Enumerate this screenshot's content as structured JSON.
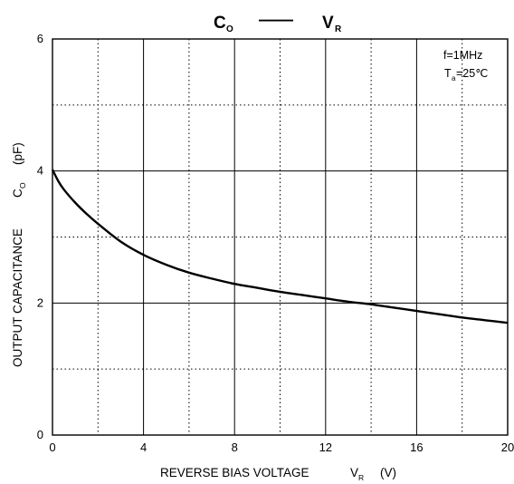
{
  "chart_data": {
    "type": "line",
    "title": {
      "main": "C",
      "main_sub": "O",
      "dash": "——",
      "right": "V",
      "right_sub": "R"
    },
    "xlabel": {
      "text": "REVERSE BIAS VOLTAGE",
      "symbol": "V",
      "symbol_sub": "R",
      "unit": "(V)"
    },
    "ylabel": {
      "text": "OUTPUT CAPACITANCE",
      "symbol": "C",
      "symbol_sub": "O",
      "unit": "(pF)"
    },
    "xlim": [
      0,
      20
    ],
    "ylim": [
      0,
      6
    ],
    "x_ticks": [
      "0",
      "4",
      "8",
      "12",
      "16",
      "20"
    ],
    "y_ticks": [
      "0",
      "2",
      "4",
      "6"
    ],
    "grid": "major solid, minor dotted",
    "annotations": {
      "freq": "f=1MHz",
      "temp_symbol": "T",
      "temp_sub": "a",
      "temp_value": "=25℃"
    },
    "legend_position": "top-right",
    "series": [
      {
        "x": [
          0,
          0.25,
          0.5,
          1,
          1.5,
          2,
          3,
          4,
          5,
          6,
          7,
          8,
          9,
          10,
          11,
          12,
          13,
          14,
          15,
          16,
          17,
          18,
          19,
          20
        ],
        "y": [
          4.02,
          3.85,
          3.72,
          3.52,
          3.35,
          3.2,
          2.93,
          2.73,
          2.58,
          2.46,
          2.37,
          2.29,
          2.23,
          2.17,
          2.12,
          2.07,
          2.02,
          1.98,
          1.93,
          1.88,
          1.83,
          1.78,
          1.74,
          1.7
        ]
      }
    ]
  }
}
